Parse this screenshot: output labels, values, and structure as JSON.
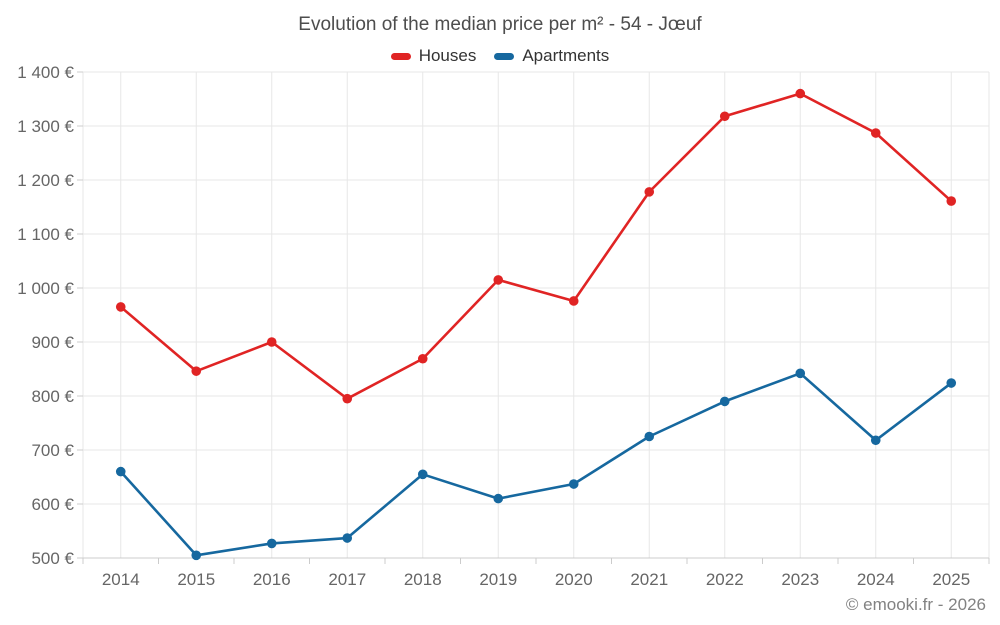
{
  "chart": {
    "title": "Evolution of the median price per m² - 54 - Jœuf"
  },
  "footer": {
    "copyright": "© emooki.fr - 2026"
  },
  "chart_data": {
    "type": "line",
    "categories": [
      "2014",
      "2015",
      "2016",
      "2017",
      "2018",
      "2019",
      "2020",
      "2021",
      "2022",
      "2023",
      "2024",
      "2025"
    ],
    "series": [
      {
        "name": "Houses",
        "color": "#e02424",
        "values": [
          965,
          846,
          900,
          795,
          869,
          1015,
          976,
          1178,
          1318,
          1360,
          1287,
          1161
        ]
      },
      {
        "name": "Apartments",
        "color": "#16689f",
        "values": [
          660,
          505,
          527,
          537,
          655,
          610,
          637,
          725,
          790,
          842,
          718,
          824
        ]
      }
    ],
    "title": "Evolution of the median price per m² - 54 - Jœuf",
    "xlabel": "",
    "ylabel": "",
    "ylim": [
      500,
      1400
    ],
    "ytick_step": 100,
    "y_suffix": " €",
    "grid": true,
    "legend_position": "top",
    "grid_color": "#e7e7e7",
    "axis_color": "#cccccc"
  }
}
